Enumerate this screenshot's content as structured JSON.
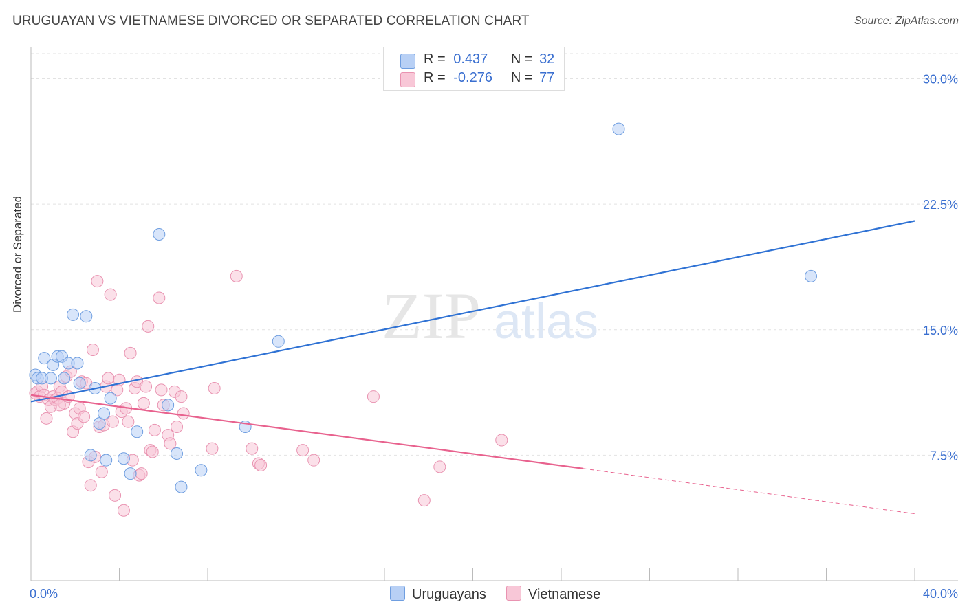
{
  "title": "URUGUAYAN VS VIETNAMESE DIVORCED OR SEPARATED CORRELATION CHART",
  "source": "Source: ZipAtlas.com",
  "watermark": {
    "zip": "ZIP",
    "atlas": "atlas"
  },
  "legend_top": {
    "rows": [
      {
        "r_label": "R =",
        "r_value": "0.437",
        "n_label": "N =",
        "n_value": "32"
      },
      {
        "r_label": "R =",
        "r_value": "-0.276",
        "n_label": "N =",
        "n_value": "77"
      }
    ]
  },
  "legend_bottom": [
    "Uruguayans",
    "Vietnamese"
  ],
  "colors": {
    "blue_fill": "#b8d0f5",
    "blue_stroke": "#6f9ee0",
    "blue_line": "#2f72d4",
    "pink_fill": "#f8c7d7",
    "pink_stroke": "#e993b1",
    "pink_line": "#e8628e",
    "tick_label": "#3a6fd0",
    "grid": "#e2e2e2"
  },
  "chart_data": {
    "type": "scatter",
    "title": "URUGUAYAN VS VIETNAMESE DIVORCED OR SEPARATED CORRELATION CHART",
    "xlabel": "",
    "ylabel": "Divorced or Separated",
    "xlim": [
      0,
      40
    ],
    "ylim": [
      0,
      31.5
    ],
    "x_tick_labels": [
      "0.0%",
      "40.0%"
    ],
    "y_ticks": [
      7.5,
      15.0,
      22.5,
      30.0
    ],
    "y_tick_labels": [
      "7.5%",
      "15.0%",
      "22.5%",
      "30.0%"
    ],
    "grid": "horizontal dashed",
    "legend": "bottom-center",
    "series": [
      {
        "name": "Uruguayans",
        "r": 0.437,
        "n": 32,
        "trend": {
          "x": [
            0,
            40
          ],
          "y": [
            10.7,
            21.5
          ]
        },
        "points": [
          [
            0.2,
            12.3
          ],
          [
            0.3,
            12.1
          ],
          [
            0.5,
            12.1
          ],
          [
            0.6,
            13.3
          ],
          [
            0.9,
            12.1
          ],
          [
            1.0,
            12.9
          ],
          [
            1.2,
            13.4
          ],
          [
            1.4,
            13.4
          ],
          [
            1.5,
            12.1
          ],
          [
            1.7,
            13.0
          ],
          [
            1.9,
            15.9
          ],
          [
            2.1,
            13.0
          ],
          [
            2.2,
            11.8
          ],
          [
            2.5,
            15.8
          ],
          [
            2.7,
            7.5
          ],
          [
            2.9,
            11.5
          ],
          [
            3.1,
            9.4
          ],
          [
            3.3,
            10.0
          ],
          [
            3.4,
            7.2
          ],
          [
            3.6,
            10.9
          ],
          [
            4.2,
            7.3
          ],
          [
            4.5,
            6.4
          ],
          [
            4.8,
            8.9
          ],
          [
            5.8,
            20.7
          ],
          [
            6.2,
            10.5
          ],
          [
            6.6,
            7.6
          ],
          [
            6.8,
            5.6
          ],
          [
            7.7,
            6.6
          ],
          [
            9.7,
            9.2
          ],
          [
            11.2,
            14.3
          ],
          [
            26.6,
            27.0
          ],
          [
            35.3,
            18.2
          ]
        ]
      },
      {
        "name": "Vietnamese",
        "r": -0.276,
        "n": 77,
        "trend": {
          "x": [
            0,
            25
          ],
          "y": [
            11.1,
            6.7
          ]
        },
        "trend_dashed": {
          "x": [
            25,
            40
          ],
          "y": [
            6.7,
            4.0
          ]
        },
        "points": [
          [
            0.2,
            11.2
          ],
          [
            0.3,
            11.3
          ],
          [
            0.4,
            11.0
          ],
          [
            0.5,
            11.6
          ],
          [
            0.6,
            11.1
          ],
          [
            0.7,
            9.7
          ],
          [
            0.8,
            10.8
          ],
          [
            0.9,
            10.4
          ],
          [
            1.0,
            11.0
          ],
          [
            1.1,
            10.8
          ],
          [
            1.2,
            10.9
          ],
          [
            1.3,
            11.6
          ],
          [
            1.4,
            11.3
          ],
          [
            1.5,
            10.6
          ],
          [
            1.6,
            12.2
          ],
          [
            1.7,
            11.0
          ],
          [
            1.8,
            12.5
          ],
          [
            1.9,
            8.9
          ],
          [
            2.0,
            10.0
          ],
          [
            2.1,
            9.4
          ],
          [
            2.2,
            10.3
          ],
          [
            2.3,
            11.9
          ],
          [
            2.4,
            9.8
          ],
          [
            2.5,
            11.8
          ],
          [
            2.6,
            7.1
          ],
          [
            2.7,
            5.7
          ],
          [
            2.8,
            13.8
          ],
          [
            2.9,
            7.4
          ],
          [
            3.0,
            17.9
          ],
          [
            3.1,
            9.2
          ],
          [
            3.2,
            6.5
          ],
          [
            3.3,
            9.3
          ],
          [
            3.4,
            11.6
          ],
          [
            3.5,
            12.1
          ],
          [
            3.6,
            17.1
          ],
          [
            3.7,
            9.5
          ],
          [
            3.8,
            5.1
          ],
          [
            3.9,
            11.4
          ],
          [
            4.0,
            12.0
          ],
          [
            4.1,
            10.1
          ],
          [
            4.2,
            4.2
          ],
          [
            4.3,
            10.3
          ],
          [
            4.4,
            9.5
          ],
          [
            4.5,
            13.6
          ],
          [
            4.6,
            7.2
          ],
          [
            4.7,
            11.5
          ],
          [
            4.8,
            11.9
          ],
          [
            4.9,
            6.3
          ],
          [
            5.0,
            6.4
          ],
          [
            5.1,
            10.6
          ],
          [
            5.2,
            11.6
          ],
          [
            5.3,
            15.2
          ],
          [
            5.4,
            7.8
          ],
          [
            5.5,
            7.7
          ],
          [
            5.6,
            9.0
          ],
          [
            5.8,
            16.9
          ],
          [
            5.9,
            11.4
          ],
          [
            6.0,
            10.5
          ],
          [
            6.2,
            8.7
          ],
          [
            6.3,
            8.2
          ],
          [
            6.5,
            11.3
          ],
          [
            6.6,
            9.2
          ],
          [
            6.8,
            11.0
          ],
          [
            6.9,
            10.0
          ],
          [
            8.2,
            7.9
          ],
          [
            8.3,
            11.5
          ],
          [
            9.3,
            18.2
          ],
          [
            10.0,
            7.9
          ],
          [
            10.3,
            7.0
          ],
          [
            10.4,
            6.9
          ],
          [
            12.3,
            7.8
          ],
          [
            12.8,
            7.2
          ],
          [
            15.5,
            11.0
          ],
          [
            17.8,
            4.8
          ],
          [
            18.5,
            6.8
          ],
          [
            21.3,
            8.4
          ],
          [
            1.3,
            10.5
          ]
        ]
      }
    ]
  }
}
